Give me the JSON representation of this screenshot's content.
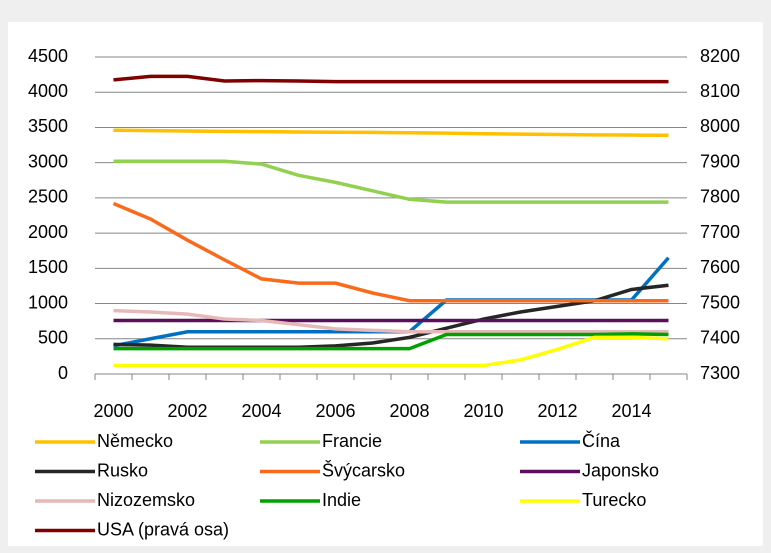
{
  "chart_data": {
    "type": "line",
    "categories": [
      "2000",
      null,
      "2002",
      null,
      "2004",
      null,
      "2006",
      null,
      "2008",
      null,
      "2010",
      null,
      "2012",
      null,
      "2014",
      null
    ],
    "ylim": [
      0,
      4500
    ],
    "yticks": [
      0,
      500,
      1000,
      1500,
      2000,
      2500,
      3000,
      3500,
      4000,
      4500
    ],
    "y2lim": [
      7300,
      8200
    ],
    "y2ticks": [
      7300,
      7400,
      7500,
      7600,
      7700,
      7800,
      7900,
      8000,
      8100,
      8200
    ],
    "grid": true,
    "legend": "bottom",
    "series": [
      {
        "name": "Německo",
        "color": "#ffc000",
        "values": [
          3460,
          3455,
          3450,
          3445,
          3440,
          3435,
          3432,
          3430,
          3425,
          3420,
          3410,
          3405,
          3400,
          3395,
          3392,
          3390
        ]
      },
      {
        "name": "Francie",
        "color": "#92d050",
        "values": [
          3020,
          3020,
          3020,
          3020,
          2980,
          2820,
          2720,
          2600,
          2480,
          2440,
          2440,
          2440,
          2440,
          2440,
          2440,
          2440
        ]
      },
      {
        "name": "Čína",
        "color": "#0070c0",
        "values": [
          400,
          500,
          600,
          600,
          600,
          600,
          600,
          600,
          600,
          1050,
          1050,
          1050,
          1050,
          1050,
          1050,
          1650
        ]
      },
      {
        "name": "Rusko",
        "color": "#262626",
        "values": [
          420,
          410,
          380,
          380,
          380,
          380,
          400,
          440,
          520,
          650,
          780,
          880,
          960,
          1040,
          1200,
          1260
        ]
      },
      {
        "name": "Švýcarsko",
        "color": "#f96a1b",
        "values": [
          2420,
          2200,
          1900,
          1620,
          1350,
          1290,
          1290,
          1150,
          1040,
          1040,
          1040,
          1040,
          1040,
          1040,
          1040,
          1040
        ]
      },
      {
        "name": "Japonsko",
        "color": "#5b0f5b",
        "values": [
          760,
          760,
          760,
          760,
          760,
          760,
          760,
          760,
          760,
          760,
          760,
          760,
          760,
          760,
          760,
          760
        ]
      },
      {
        "name": "Nizozemsko",
        "color": "#e6b9b8",
        "values": [
          900,
          880,
          850,
          780,
          760,
          700,
          640,
          620,
          600,
          600,
          600,
          600,
          600,
          600,
          600,
          600
        ]
      },
      {
        "name": "Indie",
        "color": "#00a000",
        "values": [
          360,
          360,
          360,
          360,
          360,
          360,
          360,
          360,
          360,
          560,
          560,
          560,
          560,
          560,
          570,
          560
        ]
      },
      {
        "name": "Turecko",
        "color": "#ffff00",
        "values": [
          120,
          120,
          120,
          120,
          120,
          120,
          120,
          120,
          120,
          120,
          120,
          200,
          350,
          520,
          520,
          500
        ]
      },
      {
        "name": "USA (pravá osa)",
        "color": "#800000",
        "axis": "y2",
        "values": [
          8135,
          8145,
          8145,
          8132,
          8133,
          8132,
          8130,
          8130,
          8130,
          8130,
          8130,
          8130,
          8130,
          8130,
          8130,
          8130
        ]
      }
    ]
  }
}
